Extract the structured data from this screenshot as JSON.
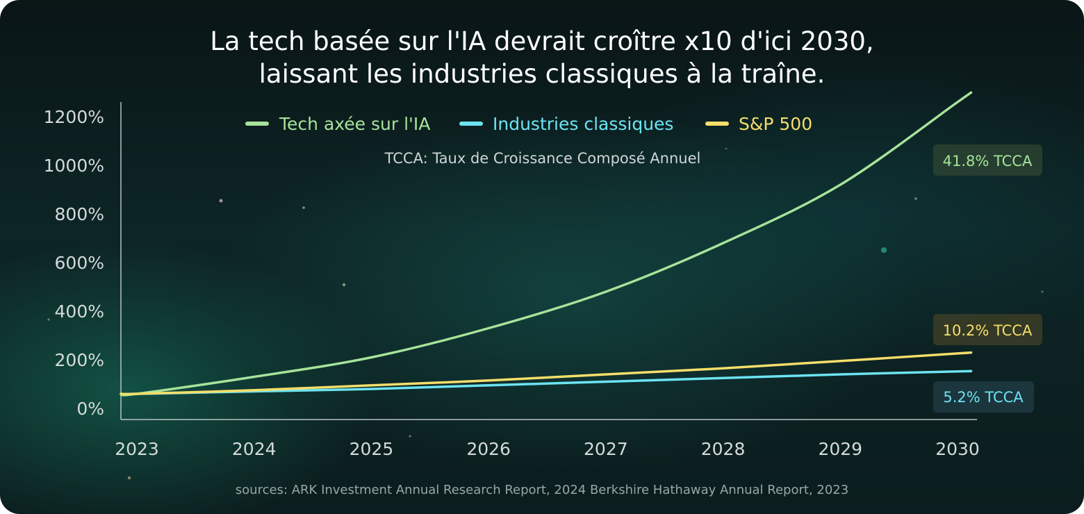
{
  "title_lines": [
    "La tech basée sur l'IA devrait croître x10 d'ici 2030,",
    "laissant les industries classiques à la traîne."
  ],
  "subtitle": "TCCA: Taux de Croissance Composé Annuel",
  "source": "sources: ARK Investment Annual Research Report, 2024 Berkshire Hathaway Annual Report, 2023",
  "chart_data": {
    "type": "line",
    "x": [
      2023,
      2024,
      2025,
      2026,
      2027,
      2028,
      2029,
      2030
    ],
    "x_tick_labels": [
      "2023",
      "2024",
      "2025",
      "2026",
      "2027",
      "2028",
      "2029",
      "2030"
    ],
    "y_tick_values": [
      0,
      200,
      400,
      600,
      800,
      1000,
      1200
    ],
    "y_tick_labels": [
      "0%",
      "200%",
      "400%",
      "600%",
      "800%",
      "1000%",
      "1200%"
    ],
    "ylim": [
      0,
      1200
    ],
    "grid": false,
    "legend_position": "top-center",
    "series": [
      {
        "name": "Tech axée sur l'IA",
        "color": "#a6e39a",
        "annotation": "41.8% TCCA",
        "values": [
          60,
          130,
          210,
          330,
          480,
          680,
          920,
          1260
        ]
      },
      {
        "name": "Industries classiques",
        "color": "#6de3f2",
        "annotation": "5.2% TCCA",
        "values": [
          60,
          70,
          80,
          95,
          110,
          125,
          140,
          152
        ]
      },
      {
        "name": "S&P 500",
        "color": "#f5de6a",
        "annotation": "10.2% TCCA",
        "values": [
          60,
          75,
          95,
          115,
          140,
          165,
          195,
          226
        ]
      }
    ]
  }
}
